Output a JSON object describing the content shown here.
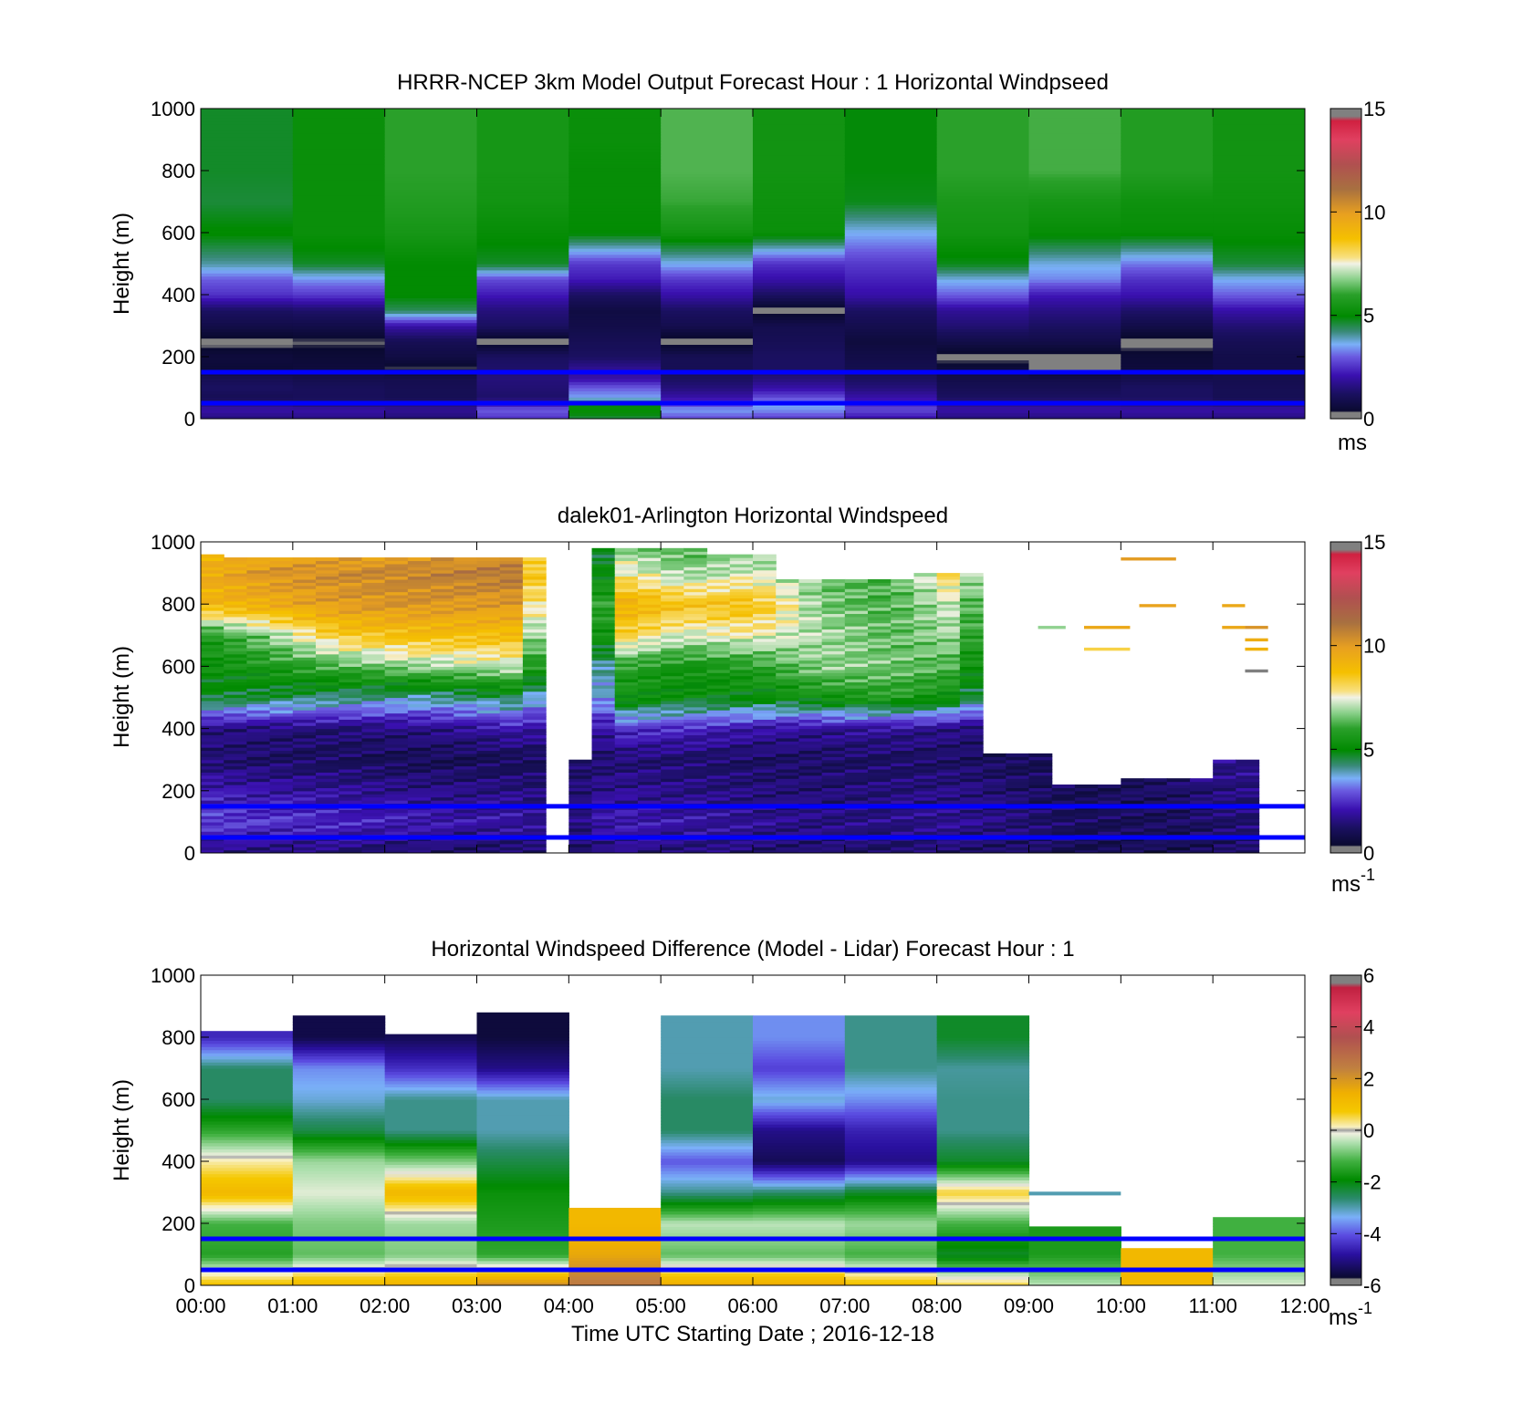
{
  "figure": {
    "x_axis_title": "Time UTC  Starting Date ; 2016-12-18",
    "x_tick_labels": [
      "00:00",
      "01:00",
      "02:00",
      "03:00",
      "04:00",
      "05:00",
      "06:00",
      "07:00",
      "08:00",
      "09:00",
      "10:00",
      "11:00",
      "12:00"
    ],
    "reference_line_color": "#0000ff",
    "reference_line_heights_m": [
      150,
      50
    ]
  },
  "chart_data": [
    {
      "type": "heatmap",
      "title": "HRRR-NCEP 3km Model Output   Forecast Hour : 1 Horizontal Windpseed",
      "ylabel": "Height (m)",
      "xlim": [
        0,
        12
      ],
      "ylim": [
        0,
        1000
      ],
      "y_ticks": [
        0,
        200,
        400,
        600,
        800,
        1000
      ],
      "colorbar": {
        "min": 0,
        "max": 15,
        "ticks": [
          0,
          5,
          10,
          15
        ],
        "unit_label": "ms",
        "unit_sup": ""
      },
      "colormap": "windspeed",
      "z_levels_m": [
        0,
        30,
        50,
        70,
        100,
        130,
        160,
        200,
        250,
        300,
        350,
        400,
        450,
        500,
        600,
        700,
        800,
        900,
        1000
      ],
      "columns": [
        {
          "t0": 0,
          "t1": 1,
          "values": [
            1.5,
            2.0,
            1.5,
            1.0,
            1.2,
            1.0,
            0.5,
            0.6,
            0.2,
            0.8,
            1.2,
            2.5,
            3.0,
            4.0,
            5.0,
            4.6,
            4.7,
            4.7
          ]
        },
        {
          "t0": 1,
          "t1": 2,
          "values": [
            1.6,
            2.0,
            1.3,
            1.1,
            1.1,
            0.9,
            0.6,
            0.5,
            0.3,
            0.8,
            1.3,
            2.6,
            3.4,
            4.7,
            5.2,
            5.2,
            5.2,
            5.2
          ]
        },
        {
          "t0": 2,
          "t1": 3,
          "values": [
            1.4,
            1.8,
            1.4,
            1.0,
            1.0,
            0.9,
            0.3,
            0.7,
            1.0,
            2.0,
            4.4,
            5.0,
            5.0,
            5.0,
            5.5,
            5.8,
            6.0,
            6.0
          ]
        },
        {
          "t0": 3,
          "t1": 4,
          "values": [
            2.5,
            3.0,
            2.0,
            1.3,
            1.4,
            1.5,
            1.3,
            1.2,
            0.2,
            1.2,
            1.5,
            2.2,
            2.8,
            4.7,
            5.1,
            5.4,
            5.5,
            5.5
          ]
        },
        {
          "t0": 4,
          "t1": 5,
          "values": [
            4.5,
            5.2,
            4.8,
            3.5,
            3.0,
            2.0,
            1.8,
            1.2,
            1.0,
            0.8,
            0.7,
            1.2,
            2.2,
            2.6,
            5.0,
            5.1,
            5.1,
            5.2
          ]
        },
        {
          "t0": 5,
          "t1": 6,
          "values": [
            2.8,
            3.5,
            2.6,
            2.0,
            1.5,
            1.2,
            1.0,
            1.0,
            0.2,
            0.9,
            1.2,
            2.0,
            2.6,
            3.6,
            5.4,
            6.1,
            6.3,
            6.3
          ]
        },
        {
          "t0": 6,
          "t1": 7,
          "values": [
            2.6,
            3.4,
            3.6,
            2.8,
            2.0,
            1.5,
            1.2,
            1.2,
            1.0,
            0.9,
            0.2,
            1.2,
            2.0,
            2.5,
            5.2,
            5.3,
            5.4,
            5.4
          ]
        },
        {
          "t0": 7,
          "t1": 8,
          "values": [
            2.0,
            2.8,
            2.4,
            2.0,
            1.5,
            1.2,
            0.9,
            0.8,
            0.6,
            0.9,
            1.2,
            2.0,
            2.3,
            2.6,
            3.6,
            4.8,
            4.9,
            4.9
          ]
        },
        {
          "t0": 8,
          "t1": 9,
          "values": [
            1.5,
            2.0,
            1.6,
            1.2,
            1.0,
            0.8,
            0.6,
            0.2,
            0.8,
            1.4,
            1.8,
            3.0,
            3.7,
            4.8,
            5.4,
            5.6,
            6.0,
            6.0
          ]
        },
        {
          "t0": 9,
          "t1": 10,
          "values": [
            1.5,
            2.0,
            1.6,
            1.2,
            1.0,
            0.8,
            0.2,
            0.2,
            0.8,
            1.2,
            1.6,
            2.2,
            3.3,
            3.7,
            5.1,
            5.5,
            6.2,
            6.2
          ]
        },
        {
          "t0": 10,
          "t1": 11,
          "values": [
            1.6,
            2.0,
            1.5,
            1.2,
            1.2,
            0.9,
            0.6,
            0.5,
            0.2,
            0.8,
            1.3,
            2.1,
            2.5,
            3.2,
            5.1,
            5.3,
            5.8,
            5.8
          ]
        },
        {
          "t0": 11,
          "t1": 12,
          "values": [
            1.5,
            2.0,
            1.4,
            1.0,
            1.0,
            0.9,
            0.8,
            0.8,
            1.0,
            1.4,
            2.0,
            3.0,
            3.6,
            4.6,
            5.1,
            5.3,
            5.4,
            5.4
          ]
        }
      ]
    },
    {
      "type": "heatmap",
      "title": "dalek01-Arlington  Horizontal Windspeed",
      "ylabel": "Height (m)",
      "xlim": [
        0,
        12
      ],
      "ylim": [
        0,
        1000
      ],
      "y_ticks": [
        0,
        200,
        400,
        600,
        800,
        1000
      ],
      "colorbar": {
        "min": 0,
        "max": 15,
        "ticks": [
          0,
          5,
          10,
          15
        ],
        "unit_label": "ms",
        "unit_sup": "-1"
      },
      "colormap": "windspeed",
      "profile_heights_m": [
        0,
        100,
        200,
        300,
        400,
        500,
        600,
        700,
        800,
        900,
        1000
      ],
      "profiles": [
        {
          "t": 0.0,
          "top": 960,
          "values": [
            1.5,
            2.8,
            2.2,
            1.4,
            1.6,
            4.8,
            5.2,
            5.6,
            9.0,
            9.4,
            8.5
          ]
        },
        {
          "t": 0.75,
          "top": 950,
          "values": [
            1.5,
            2.6,
            2.0,
            1.2,
            1.5,
            4.5,
            5.6,
            6.8,
            9.4,
            10.2,
            9.0
          ]
        },
        {
          "t": 1.5,
          "top": 950,
          "values": [
            1.4,
            2.4,
            1.8,
            1.1,
            1.4,
            4.2,
            6.2,
            8.4,
            10.0,
            10.4,
            9.2
          ]
        },
        {
          "t": 2.25,
          "top": 950,
          "values": [
            1.3,
            2.2,
            1.7,
            1.0,
            1.6,
            4.0,
            6.8,
            8.8,
            10.2,
            10.6,
            9.4
          ]
        },
        {
          "t": 3.0,
          "top": 950,
          "values": [
            1.2,
            2.0,
            1.6,
            1.0,
            1.8,
            4.2,
            7.0,
            8.8,
            10.0,
            10.8,
            9.5
          ]
        },
        {
          "t": 3.5,
          "top": 950,
          "values": [
            1.2,
            2.0,
            1.6,
            1.0,
            2.2,
            4.6,
            7.2,
            8.8,
            10.0,
            11.0,
            9.6
          ]
        },
        {
          "t": 4.0,
          "top": 0,
          "values": [
            1.2,
            1.2,
            1.2,
            1.2,
            1.2,
            1.2,
            1.2,
            1.2,
            1.2,
            1.2,
            1.2
          ]
        },
        {
          "t": 4.2,
          "top": 300,
          "values": [
            1.4,
            1.8,
            1.6,
            1.2,
            1.2,
            1.2,
            1.2,
            1.2,
            1.2,
            1.2,
            1.2
          ]
        },
        {
          "t": 4.5,
          "top": 980,
          "values": [
            1.6,
            2.2,
            1.8,
            1.4,
            2.6,
            5.4,
            6.0,
            8.4,
            9.4,
            7.8,
            6.6
          ]
        },
        {
          "t": 5.25,
          "top": 980,
          "values": [
            1.5,
            2.0,
            1.6,
            1.3,
            2.4,
            5.0,
            5.4,
            7.2,
            8.6,
            6.8,
            6.0
          ]
        },
        {
          "t": 6.0,
          "top": 960,
          "values": [
            1.4,
            1.8,
            1.5,
            1.2,
            2.0,
            5.0,
            5.8,
            7.6,
            8.8,
            7.4,
            6.5
          ]
        },
        {
          "t": 6.75,
          "top": 880,
          "values": [
            1.3,
            1.6,
            1.4,
            1.2,
            1.8,
            5.4,
            6.8,
            7.0,
            6.6,
            6.6,
            6.6
          ]
        },
        {
          "t": 7.5,
          "top": 880,
          "values": [
            1.3,
            1.6,
            1.5,
            1.2,
            1.8,
            5.8,
            6.6,
            6.4,
            6.2,
            6.2,
            6.2
          ]
        },
        {
          "t": 8.25,
          "top": 900,
          "values": [
            1.3,
            1.8,
            1.6,
            1.2,
            1.6,
            5.2,
            6.2,
            7.0,
            7.4,
            8.4,
            7.8
          ]
        },
        {
          "t": 9.0,
          "top": 320,
          "values": [
            1.2,
            1.4,
            1.2,
            1.0,
            1.0,
            1.0,
            1.0,
            1.0,
            1.0,
            1.0,
            1.0
          ]
        },
        {
          "t": 9.5,
          "top": 220,
          "values": [
            1.0,
            1.1,
            1.0,
            1.0,
            1.0,
            1.0,
            1.0,
            1.0,
            1.0,
            1.0,
            1.0
          ]
        },
        {
          "t": 10.5,
          "top": 240,
          "values": [
            1.0,
            1.1,
            1.2,
            1.2,
            1.2,
            1.2,
            1.2,
            1.2,
            1.2,
            1.2,
            1.2
          ]
        },
        {
          "t": 11.3,
          "top": 300,
          "values": [
            1.2,
            1.4,
            1.6,
            1.8,
            1.8,
            1.8,
            1.8,
            1.8,
            1.8,
            1.8,
            1.8
          ]
        },
        {
          "t": 11.8,
          "top": 0,
          "values": [
            1.2,
            1.2,
            1.2,
            1.2,
            1.2,
            1.2,
            1.2,
            1.2,
            1.2,
            1.2,
            1.2
          ]
        }
      ],
      "data_end_t": 11.8,
      "sparse_points": [
        {
          "t0": 10.0,
          "t1": 10.6,
          "z": 940,
          "value": 10.0
        },
        {
          "t0": 10.2,
          "t1": 10.6,
          "z": 790,
          "value": 9.8
        },
        {
          "t0": 9.1,
          "t1": 9.4,
          "z": 720,
          "value": 6.8
        },
        {
          "t0": 9.6,
          "t1": 10.1,
          "z": 720,
          "value": 9.6
        },
        {
          "t0": 9.6,
          "t1": 10.1,
          "z": 650,
          "value": 8.2
        },
        {
          "t0": 11.1,
          "t1": 11.35,
          "z": 790,
          "value": 9.6
        },
        {
          "t0": 11.1,
          "t1": 11.35,
          "z": 720,
          "value": 9.6
        },
        {
          "t0": 11.35,
          "t1": 11.6,
          "z": 720,
          "value": 10.2
        },
        {
          "t0": 11.35,
          "t1": 11.6,
          "z": 680,
          "value": 9.4
        },
        {
          "t0": 11.35,
          "t1": 11.6,
          "z": 650,
          "value": 9.2
        },
        {
          "t0": 11.35,
          "t1": 11.6,
          "z": 580,
          "value": 0.2
        }
      ]
    },
    {
      "type": "heatmap",
      "title": "Horizontal Windspeed Difference (Model - Lidar) Forecast Hour : 1",
      "ylabel": "Height (m)",
      "xlim": [
        0,
        12
      ],
      "ylim": [
        0,
        1000
      ],
      "y_ticks": [
        0,
        200,
        400,
        600,
        800,
        1000
      ],
      "colorbar": {
        "min": -6,
        "max": 6,
        "ticks": [
          -6,
          -4,
          -2,
          0,
          2,
          4,
          6
        ],
        "unit_label": "ms",
        "unit_sup": "-1"
      },
      "colormap": "difference",
      "z_levels_m": [
        0,
        100,
        200,
        300,
        400,
        500,
        600,
        700,
        800,
        900
      ],
      "columns": [
        {
          "t0": 0,
          "t1": 1,
          "top": 820,
          "values": [
            1.0,
            -1.5,
            -1.2,
            1.2,
            0.2,
            -1.4,
            -2.6,
            -2.6,
            -4.5
          ]
        },
        {
          "t0": 1,
          "t1": 2,
          "top": 870,
          "values": [
            1.2,
            -1.0,
            -0.8,
            -0.2,
            -0.6,
            -2.4,
            -3.2,
            -3.6,
            -5.5
          ]
        },
        {
          "t0": 2,
          "t1": 3,
          "top": 810,
          "values": [
            1.4,
            -0.8,
            -0.6,
            1.2,
            -0.8,
            -2.8,
            -2.8,
            -4.4,
            -5.4
          ]
        },
        {
          "t0": 3,
          "t1": 4,
          "top": 880,
          "values": [
            2.2,
            -1.4,
            -1.6,
            -1.8,
            -2.4,
            -3.0,
            -3.0,
            -5.0,
            -5.6
          ]
        },
        {
          "t0": 4,
          "t1": 5,
          "top": 250,
          "values": [
            2.6,
            1.6,
            1.2,
            1.2,
            1.2,
            1.2,
            1.2,
            1.2,
            1.2
          ]
        },
        {
          "t0": 5,
          "t1": 6,
          "top": 870,
          "values": [
            1.6,
            -1.0,
            -0.4,
            -2.8,
            -4.0,
            -2.6,
            -2.6,
            -3.0,
            -3.0
          ]
        },
        {
          "t0": 6,
          "t1": 7,
          "top": 870,
          "values": [
            1.6,
            -1.0,
            -0.4,
            -2.6,
            -5.4,
            -5.0,
            -3.2,
            -4.2,
            -3.6
          ]
        },
        {
          "t0": 7,
          "t1": 8,
          "top": 870,
          "values": [
            1.0,
            -1.2,
            -0.6,
            -2.2,
            -5.0,
            -4.6,
            -3.6,
            -2.8,
            -2.8
          ]
        },
        {
          "t0": 8,
          "t1": 9,
          "top": 870,
          "values": [
            0.6,
            -2.2,
            -1.2,
            0.6,
            -2.2,
            -2.8,
            -2.8,
            -2.9,
            -2.2
          ]
        },
        {
          "t0": 9,
          "t1": 10,
          "top": 190,
          "values": [
            -0.4,
            -1.6,
            -1.6,
            -1.6,
            -1.6,
            -1.6,
            -1.6,
            -1.6,
            -1.6
          ]
        },
        {
          "t0": 10,
          "t1": 11,
          "top": 120,
          "values": [
            1.2,
            1.2,
            1.2,
            1.2,
            1.2,
            1.2,
            1.2,
            1.2,
            1.2
          ]
        },
        {
          "t0": 11,
          "t1": 12,
          "top": 220,
          "values": [
            -0.2,
            -1.2,
            -1.2,
            -1.2,
            -1.2,
            -1.2,
            -1.2,
            -1.2,
            -1.2
          ]
        }
      ],
      "extra_points": [
        {
          "t0": 9,
          "t1": 10,
          "z": 290,
          "value": -3.0
        }
      ]
    }
  ]
}
